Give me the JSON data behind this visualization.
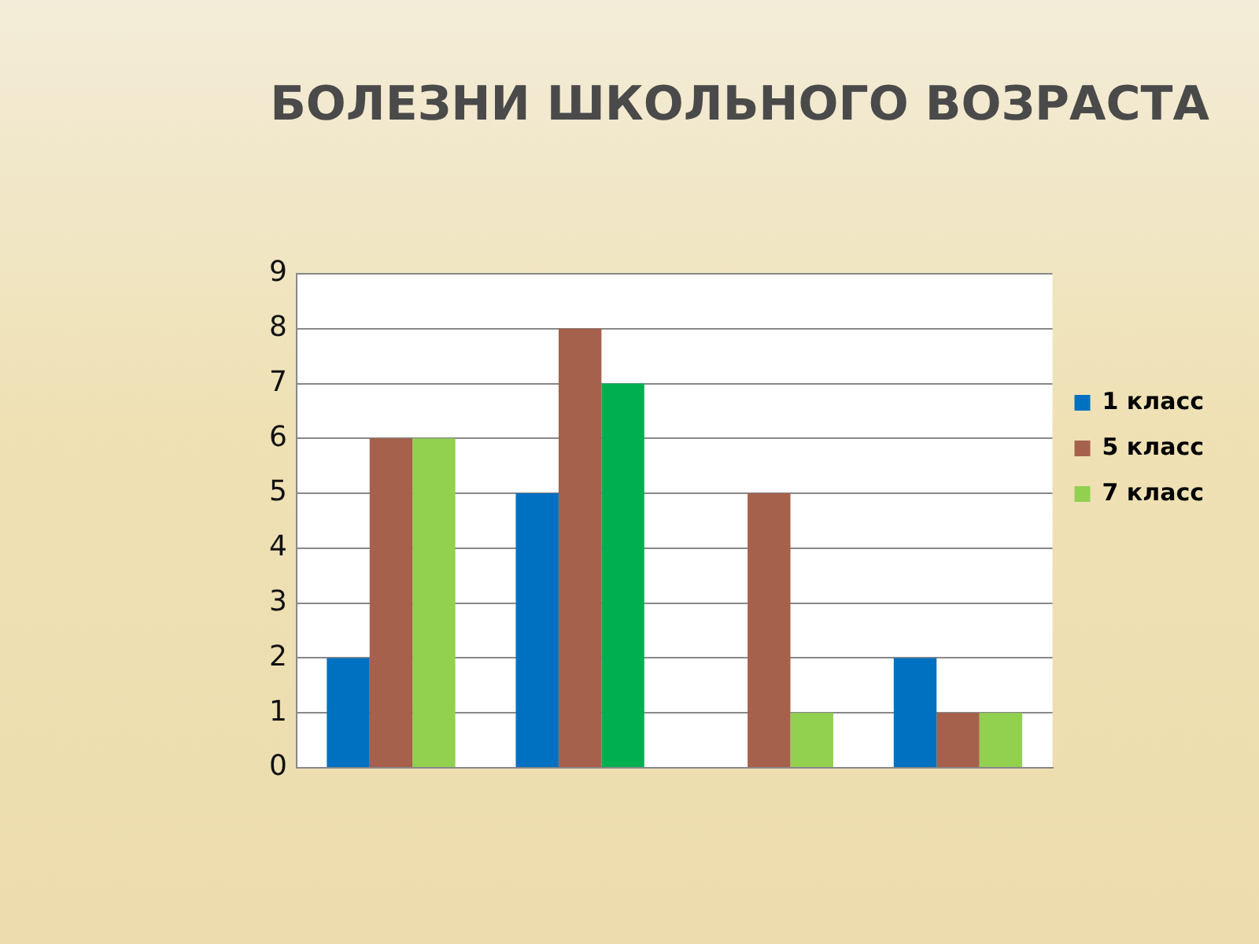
{
  "chart_data": {
    "type": "bar",
    "title": "БОЛЕЗНИ ШКОЛЬНОГО ВОЗРАСТА",
    "categories": [
      null,
      null,
      null,
      null
    ],
    "series": [
      {
        "name": "1 класс",
        "color": "#0070c0",
        "values": [
          2,
          5,
          0,
          2
        ]
      },
      {
        "name": "5 класс",
        "color": "#a5614b",
        "values": [
          6,
          8,
          5,
          1
        ]
      },
      {
        "name": "7 класс",
        "color": "#92d050",
        "colors": [
          "#92d050",
          "#00b050",
          "#92d050",
          "#92d050"
        ],
        "values": [
          6,
          7,
          1,
          1
        ]
      }
    ],
    "ylim": [
      0,
      9
    ],
    "yticks": [
      0,
      1,
      2,
      3,
      4,
      5,
      6,
      7,
      8,
      9
    ],
    "grid": "y",
    "legend": "right"
  }
}
